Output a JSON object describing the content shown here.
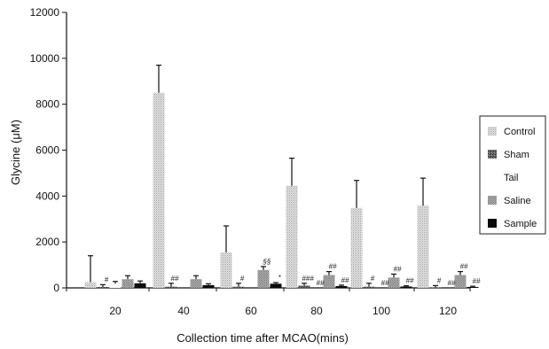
{
  "chart_data": {
    "type": "bar",
    "xlabel": "Collection time after MCAO(mins)",
    "ylabel": "Glycine (μM)",
    "ylim": [
      0,
      12000
    ],
    "yticks": [
      "0",
      "2000",
      "4000",
      "6000",
      "8000",
      "10000",
      "12000"
    ],
    "categories": [
      "20",
      "40",
      "60",
      "80",
      "100",
      "120"
    ],
    "series": [
      {
        "name": "Control",
        "values": [
          250,
          8500,
          1550,
          4450,
          3480,
          3580
        ],
        "errors": [
          1150,
          1200,
          1150,
          1200,
          1200,
          1200
        ]
      },
      {
        "name": "Sham",
        "values": [
          40,
          50,
          50,
          100,
          50,
          20
        ],
        "errors": [
          100,
          150,
          150,
          100,
          150,
          80
        ]
      },
      {
        "name": "Tail",
        "values": [
          180,
          0,
          0,
          0,
          0,
          0
        ],
        "errors": [
          100,
          0,
          0,
          0,
          0,
          0
        ]
      },
      {
        "name": "Saline",
        "values": [
          380,
          380,
          780,
          560,
          450,
          560
        ],
        "errors": [
          150,
          150,
          150,
          150,
          150,
          150
        ]
      },
      {
        "name": "Sample",
        "values": [
          200,
          120,
          180,
          80,
          60,
          40
        ],
        "errors": [
          100,
          60,
          50,
          40,
          30,
          30
        ]
      }
    ],
    "annotations": [
      {
        "category": "20",
        "series": "Sham",
        "text": "#"
      },
      {
        "category": "40",
        "series": "Sham",
        "text": "##"
      },
      {
        "category": "60",
        "series": "Sham",
        "text": "#"
      },
      {
        "category": "60",
        "series": "Saline",
        "text": "§§"
      },
      {
        "category": "60",
        "series": "Sample",
        "text": "*"
      },
      {
        "category": "80",
        "series": "Sham",
        "text": "###"
      },
      {
        "category": "80",
        "series": "Tail",
        "text": "##"
      },
      {
        "category": "80",
        "series": "Saline",
        "text": "##"
      },
      {
        "category": "80",
        "series": "Sample",
        "text": "##"
      },
      {
        "category": "100",
        "series": "Sham",
        "text": "#"
      },
      {
        "category": "100",
        "series": "Tail",
        "text": "##"
      },
      {
        "category": "100",
        "series": "Saline",
        "text": "##"
      },
      {
        "category": "100",
        "series": "Sample",
        "text": "##"
      },
      {
        "category": "120",
        "series": "Sham",
        "text": "#"
      },
      {
        "category": "120",
        "series": "Tail",
        "text": "##"
      },
      {
        "category": "120",
        "series": "Saline",
        "text": "##"
      },
      {
        "category": "120",
        "series": "Sample",
        "text": "##"
      }
    ],
    "legend_position": "right",
    "grid": false
  }
}
